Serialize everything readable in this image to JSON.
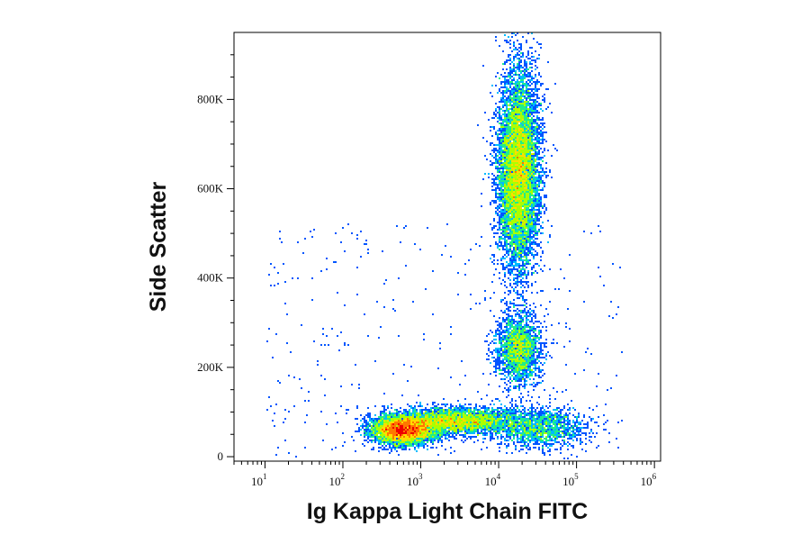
{
  "chart_data": {
    "type": "scatter",
    "subtype": "flow-cytometry density dot plot",
    "xlabel": "Ig Kappa Light Chain FITC",
    "ylabel": "Side Scatter",
    "x_scale": "log",
    "y_scale": "linear",
    "xlim": [
      4,
      1200000
    ],
    "ylim": [
      -10000,
      950000
    ],
    "x_ticks": [
      {
        "value": 10,
        "base": "10",
        "exp": "1"
      },
      {
        "value": 100,
        "base": "10",
        "exp": "2"
      },
      {
        "value": 1000,
        "base": "10",
        "exp": "3"
      },
      {
        "value": 10000,
        "base": "10",
        "exp": "4"
      },
      {
        "value": 100000,
        "base": "10",
        "exp": "5"
      },
      {
        "value": 1000000,
        "base": "10",
        "exp": "6"
      }
    ],
    "y_ticks": [
      {
        "value": 0,
        "label": "0"
      },
      {
        "value": 200000,
        "label": "200K"
      },
      {
        "value": 400000,
        "label": "400K"
      },
      {
        "value": 600000,
        "label": "600K"
      },
      {
        "value": 800000,
        "label": "800K"
      }
    ],
    "grid": false,
    "colormap": [
      "#0000cc",
      "#0055ff",
      "#00bbff",
      "#22ee88",
      "#aaff00",
      "#ffdd00",
      "#ff7700",
      "#ee0000"
    ],
    "populations": [
      {
        "x_center": 600,
        "x_log_spread": 0.2,
        "y_center": 60000,
        "y_spread": 16000,
        "events": 5000
      },
      {
        "x_center": 3000,
        "x_log_spread": 0.4,
        "y_center": 80000,
        "y_spread": 15000,
        "events": 3500
      },
      {
        "x_center": 18000,
        "x_log_spread": 0.13,
        "y_center": 640000,
        "y_spread": 110000,
        "events": 9000
      },
      {
        "x_center": 18000,
        "x_log_spread": 0.14,
        "y_center": 240000,
        "y_spread": 38000,
        "events": 2200
      },
      {
        "x_center": 35000,
        "x_log_spread": 0.3,
        "y_center": 65000,
        "y_spread": 22000,
        "events": 1500
      }
    ]
  }
}
